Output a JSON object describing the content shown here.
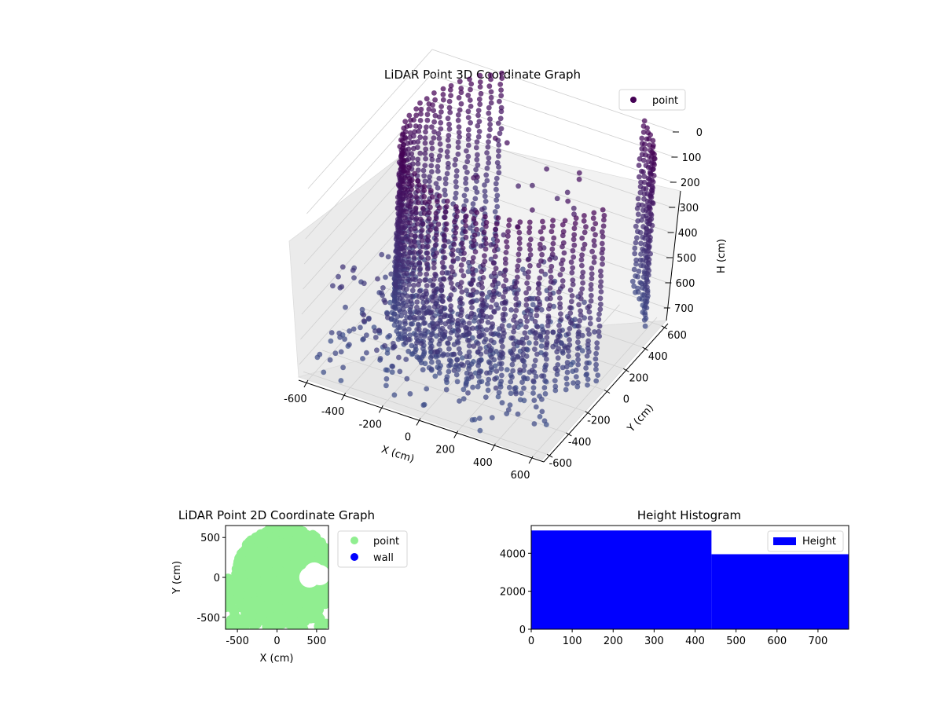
{
  "colors": {
    "point_3d_legend": "#440154",
    "point_2d": "#90ee90",
    "wall_2d": "#0000ff",
    "histogram": "#0000ff"
  },
  "chart_data": [
    {
      "type": "scatter",
      "projection": "3d",
      "title": "LiDAR Point 3D Coordinate Graph",
      "xlabel": "X (cm)",
      "ylabel": "Y (cm)",
      "zlabel": "H (cm)",
      "xticks": [
        -600,
        -400,
        -200,
        0,
        200,
        400,
        600
      ],
      "yticks": [
        -600,
        -400,
        -200,
        0,
        200,
        400,
        600
      ],
      "zticks": [
        0,
        100,
        200,
        300,
        400,
        500,
        600,
        700
      ],
      "xlim": [
        -650,
        650
      ],
      "ylim": [
        -650,
        650
      ],
      "zlim": [
        0,
        750
      ],
      "z_inverted": true,
      "grid": true,
      "legend": {
        "placement": "top-right",
        "entries": [
          "point"
        ]
      },
      "point_cloud_shape": {
        "wall_radius": 600,
        "wall_center": [
          100,
          180
        ],
        "height_range": [
          0,
          700
        ]
      },
      "series": [
        {
          "name": "point"
        }
      ]
    },
    {
      "type": "scatter",
      "title": "LiDAR Point 2D Coordinate Graph",
      "xlabel": "X (cm)",
      "ylabel": "Y (cm)",
      "xticks": [
        -500,
        0,
        500
      ],
      "yticks": [
        -500,
        0,
        500
      ],
      "xlim": [
        -650,
        650
      ],
      "ylim": [
        -650,
        650
      ],
      "legend": {
        "placement": "outside-right",
        "entries": [
          "point",
          "wall"
        ]
      },
      "series": [
        {
          "name": "point"
        },
        {
          "name": "wall"
        }
      ]
    },
    {
      "type": "bar",
      "histogram": true,
      "title": "Height Histogram",
      "xticks": [
        0,
        100,
        200,
        300,
        400,
        500,
        600,
        700
      ],
      "yticks": [
        0,
        2000,
        4000
      ],
      "xlim": [
        0,
        775
      ],
      "ylim": [
        0,
        5460
      ],
      "bins": [
        {
          "x0": 0,
          "x1": 440,
          "value": 5200
        },
        {
          "x0": 440,
          "x1": 775,
          "value": 3950
        }
      ],
      "legend": {
        "placement": "top-right",
        "entries": [
          "Height"
        ]
      },
      "series": [
        {
          "name": "Height"
        }
      ]
    }
  ]
}
